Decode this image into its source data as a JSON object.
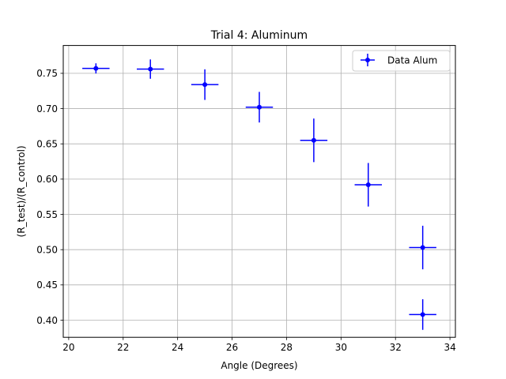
{
  "chart_data": {
    "type": "scatter",
    "title": "Trial 4: Aluminum",
    "xlabel": "Angle (Degrees)",
    "ylabel": "(R_test)/(R_control)",
    "xlim": [
      19.8,
      34.2
    ],
    "ylim": [
      0.3757,
      0.7895
    ],
    "x_ticks": [
      20,
      22,
      24,
      26,
      28,
      30,
      32,
      34
    ],
    "y_ticks": [
      0.4,
      0.45,
      0.5,
      0.55,
      0.6,
      0.65,
      0.7,
      0.75
    ],
    "x_tick_labels": [
      "20",
      "22",
      "24",
      "26",
      "28",
      "30",
      "32",
      "34"
    ],
    "y_tick_labels": [
      "0.40",
      "0.45",
      "0.50",
      "0.55",
      "0.60",
      "0.65",
      "0.70",
      "0.75"
    ],
    "grid": true,
    "legend_position": "top-right",
    "series": [
      {
        "name": "Data Alum",
        "color": "#0000ff",
        "marker": "circle",
        "points": [
          {
            "x": 21,
            "y": 0.757,
            "xerr": 0.5,
            "yerr": 0.0072
          },
          {
            "x": 23,
            "y": 0.756,
            "xerr": 0.5,
            "yerr": 0.0137
          },
          {
            "x": 25,
            "y": 0.734,
            "xerr": 0.5,
            "yerr": 0.0217
          },
          {
            "x": 27,
            "y": 0.702,
            "xerr": 0.5,
            "yerr": 0.0217
          },
          {
            "x": 29,
            "y": 0.655,
            "xerr": 0.5,
            "yerr": 0.0309
          },
          {
            "x": 31,
            "y": 0.592,
            "xerr": 0.5,
            "yerr": 0.0309
          },
          {
            "x": 33,
            "y": 0.503,
            "xerr": 0.5,
            "yerr": 0.0309
          },
          {
            "x": 33,
            "y": 0.408,
            "xerr": 0.5,
            "yerr": 0.0217
          }
        ]
      }
    ]
  }
}
